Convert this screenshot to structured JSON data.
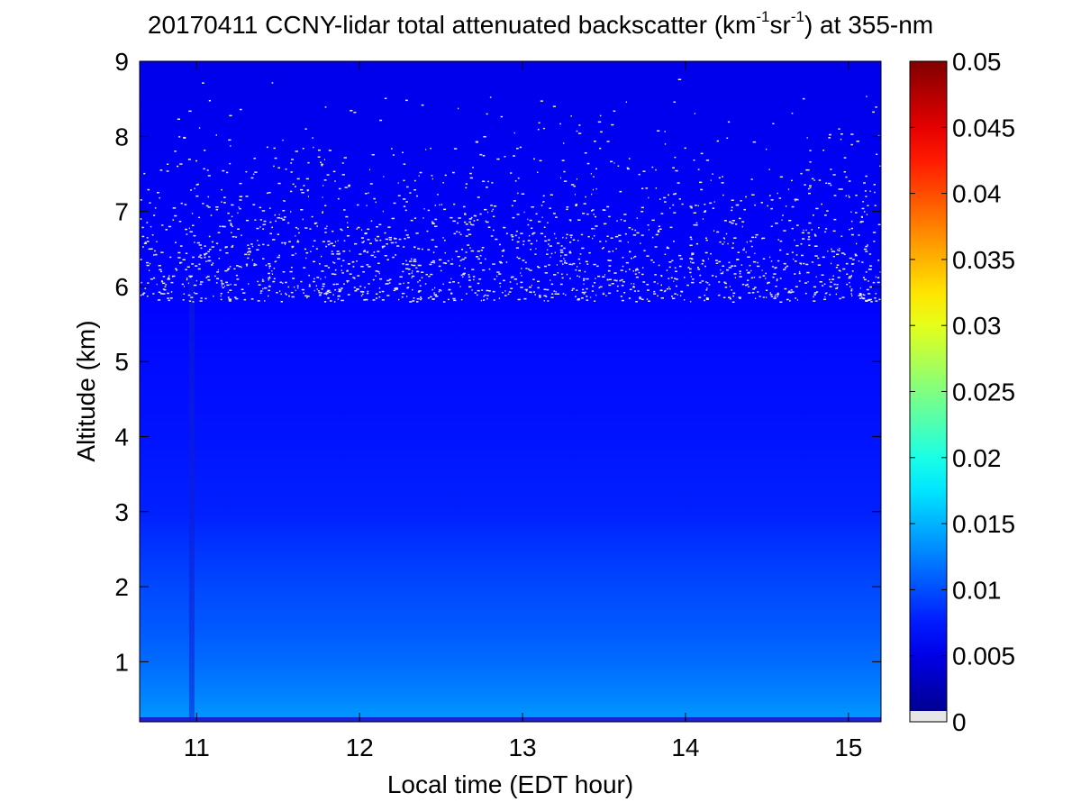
{
  "chart_data": {
    "type": "heatmap",
    "title": {
      "prefix": "20170411 CCNY-lidar total attenuated backscatter (km",
      "sup1": "-1",
      "middle": "sr",
      "sup2": "-1",
      "suffix": ") at 355-nm"
    },
    "xlabel": "Local time (EDT hour)",
    "ylabel": "Altitude (km)",
    "xlim": [
      10.65,
      15.2
    ],
    "ylim": [
      0.2,
      9
    ],
    "x_ticks": [
      11,
      12,
      13,
      14,
      15
    ],
    "x_tick_labels": [
      "11",
      "12",
      "13",
      "14",
      "15"
    ],
    "y_ticks": [
      1,
      2,
      3,
      4,
      5,
      6,
      7,
      8,
      9
    ],
    "y_tick_labels": [
      "1",
      "2",
      "3",
      "4",
      "5",
      "6",
      "7",
      "8",
      "9"
    ],
    "colormap": "jet",
    "colorbar": {
      "range": [
        0,
        0.05
      ],
      "ticks": [
        0,
        0.005,
        0.01,
        0.015,
        0.02,
        0.025,
        0.03,
        0.035,
        0.04,
        0.045,
        0.05
      ],
      "tick_labels": [
        "0",
        "0.005",
        "0.01",
        "0.015",
        "0.02",
        "0.025",
        "0.03",
        "0.035",
        "0.04",
        "0.045",
        "0.05"
      ],
      "below_range_color": "#e6e6e6"
    },
    "profile": [
      {
        "altitude": 0.3,
        "backscatter": 0.0135
      },
      {
        "altitude": 0.6,
        "backscatter": 0.0125
      },
      {
        "altitude": 1.0,
        "backscatter": 0.0115
      },
      {
        "altitude": 1.5,
        "backscatter": 0.0105
      },
      {
        "altitude": 2.0,
        "backscatter": 0.0098
      },
      {
        "altitude": 2.5,
        "backscatter": 0.0088
      },
      {
        "altitude": 3.0,
        "backscatter": 0.0078
      },
      {
        "altitude": 4.0,
        "backscatter": 0.0072
      },
      {
        "altitude": 5.0,
        "backscatter": 0.0068
      },
      {
        "altitude": 6.0,
        "backscatter": 0.0063
      },
      {
        "altitude": 7.0,
        "backscatter": 0.0058
      },
      {
        "altitude": 8.0,
        "backscatter": 0.0055
      },
      {
        "altitude": 9.0,
        "backscatter": 0.0052
      }
    ],
    "features": [
      {
        "kind": "dark-column",
        "time": 10.97,
        "altitude_range": [
          0.2,
          6.1
        ]
      },
      {
        "kind": "noise-speckle",
        "altitude_range": [
          5.8,
          9.0
        ],
        "color": "#e6e6e6"
      }
    ]
  }
}
